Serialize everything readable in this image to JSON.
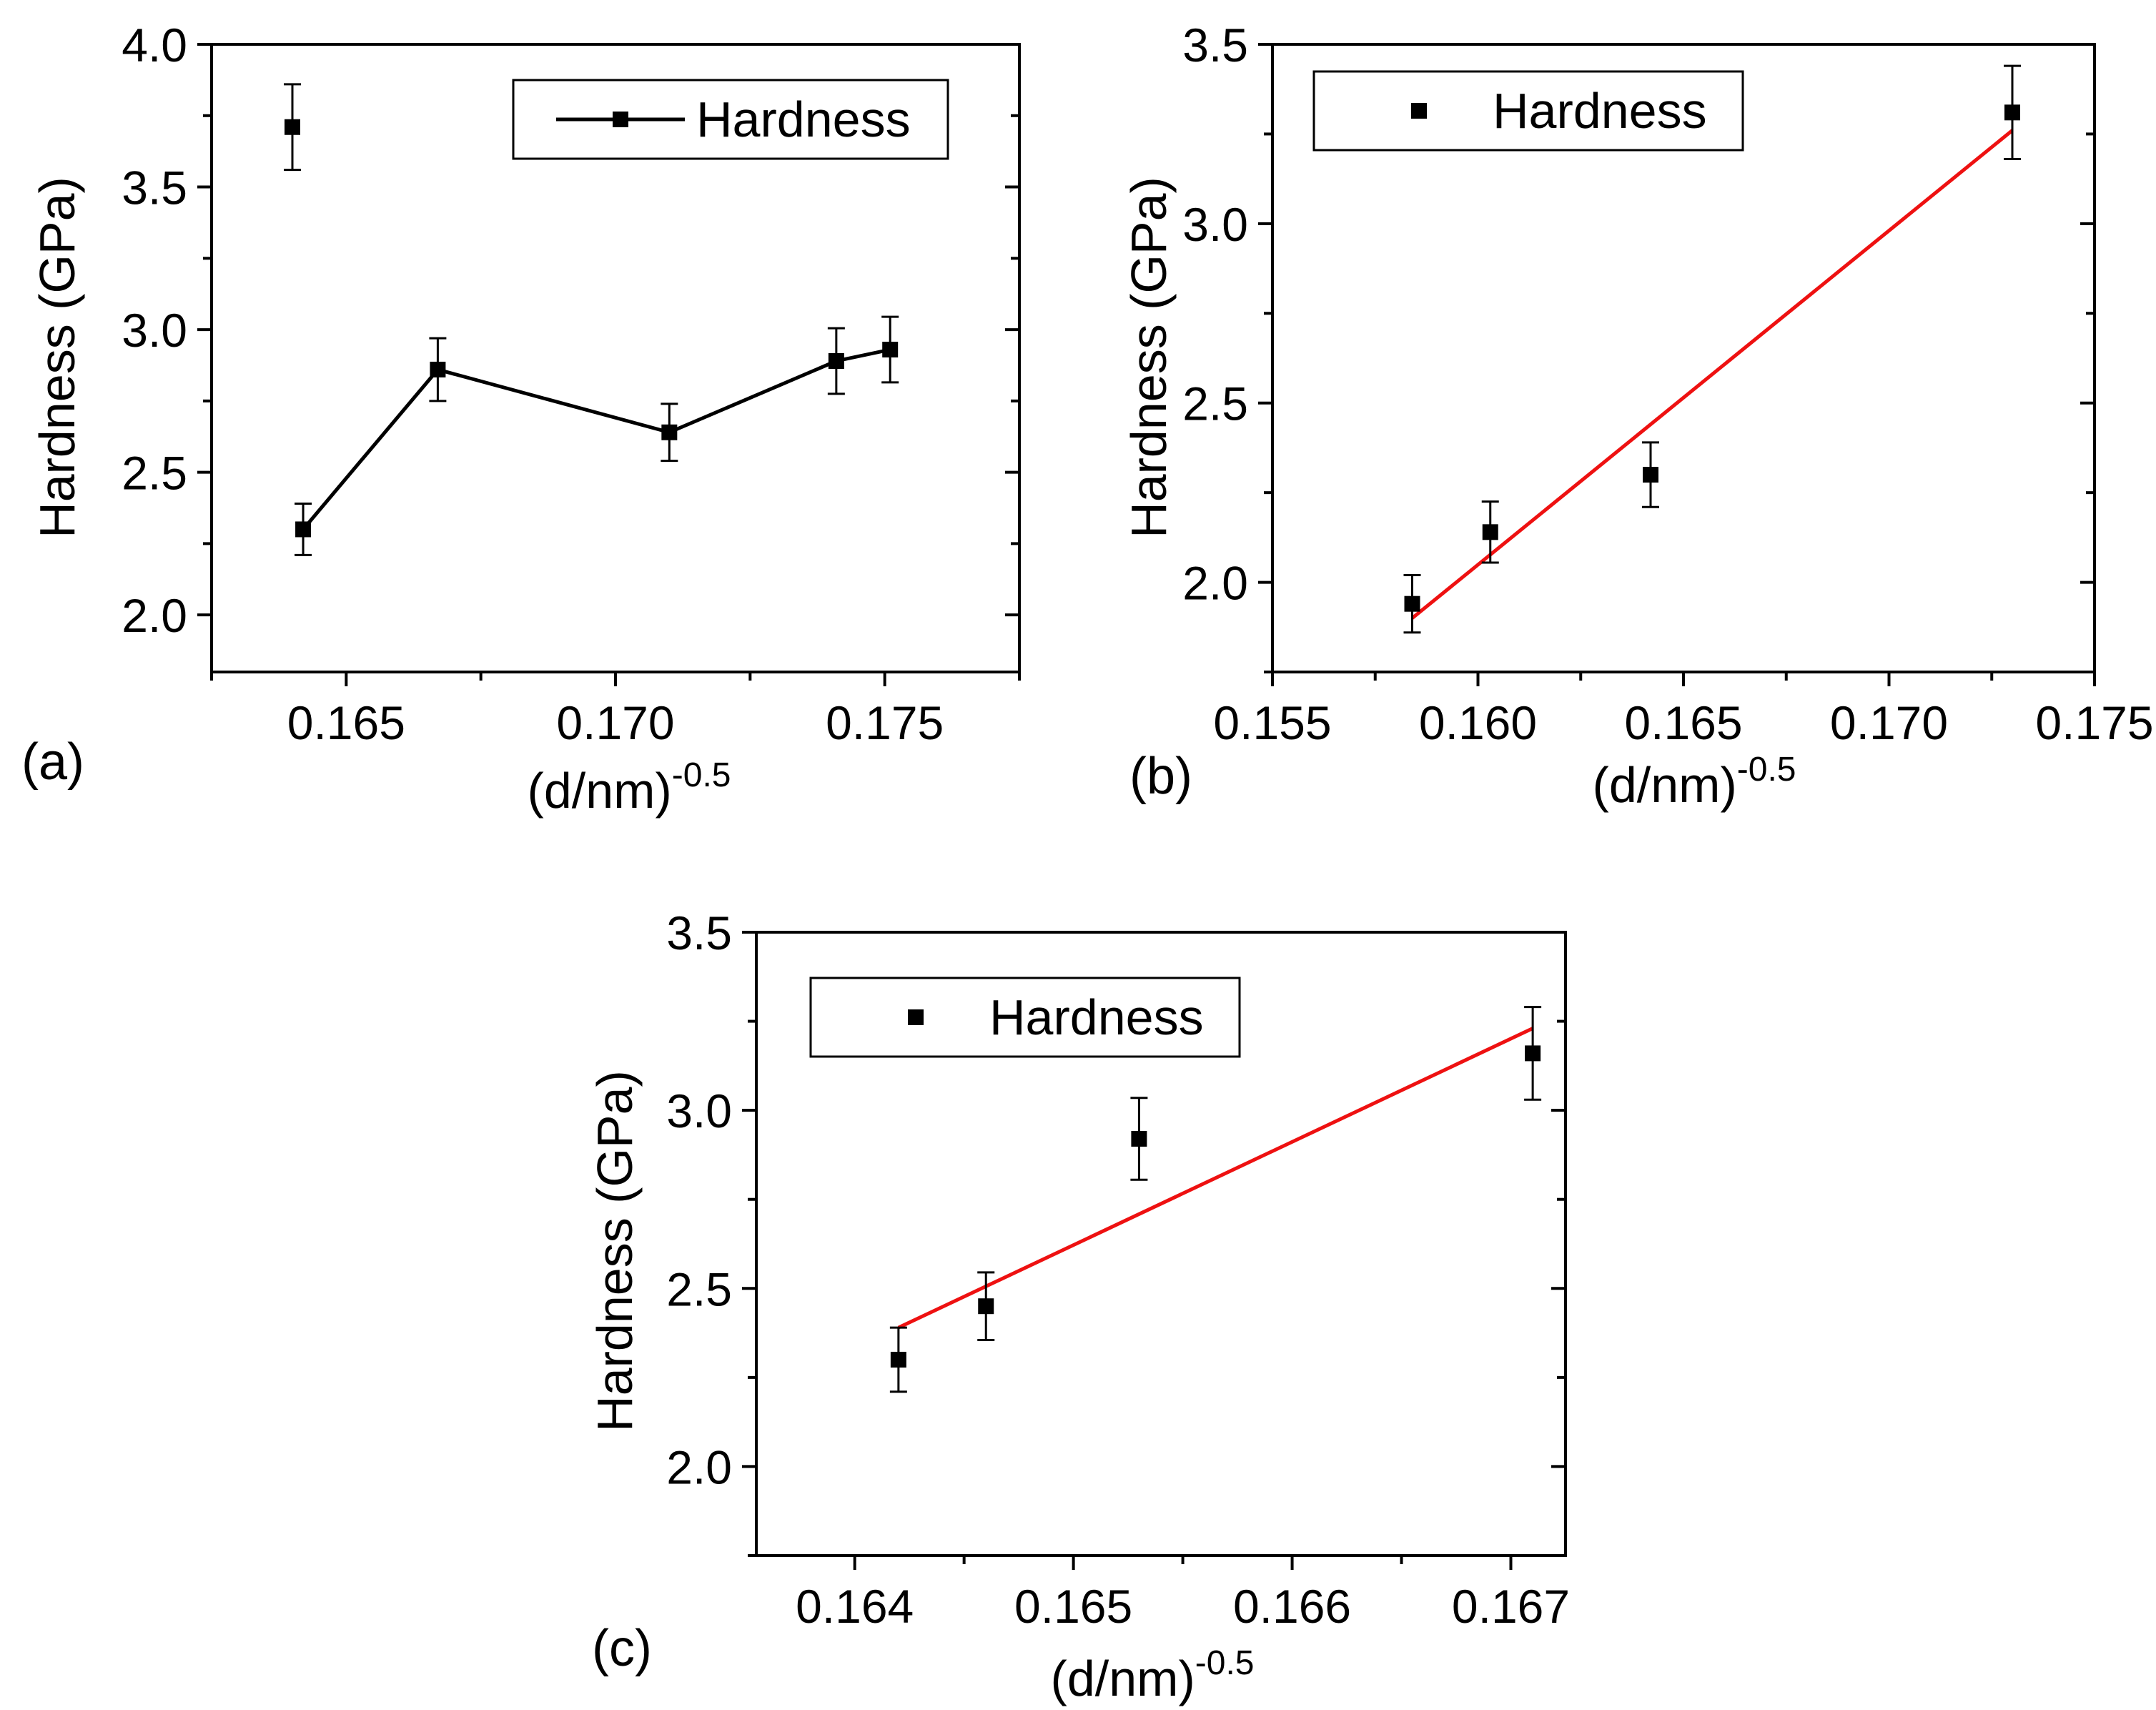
{
  "chart_data": [
    {
      "panel": "(a)",
      "type": "line",
      "xlabel": "(d/nm)",
      "xlabel_exponent": "-0.5",
      "ylabel": "Hardness (GPa)",
      "xlim": [
        0.1625,
        0.1775
      ],
      "ylim": [
        1.8,
        4.0
      ],
      "xticks": [
        0.165,
        0.17,
        0.175
      ],
      "xtick_labels": [
        "0.165",
        "0.170",
        "0.175"
      ],
      "yticks": [
        2.0,
        2.5,
        3.0,
        3.5,
        4.0
      ],
      "ytick_labels": [
        "2.0",
        "2.5",
        "3.0",
        "3.5",
        "4.0"
      ],
      "legend": {
        "label": "Hardness",
        "placement": "top-right",
        "style": "line-marker"
      },
      "points": [
        {
          "x": 0.164,
          "y": 3.71,
          "err": 0.15
        },
        {
          "x": 0.1642,
          "y": 2.3,
          "err": 0.09
        },
        {
          "x": 0.1667,
          "y": 2.86,
          "err": 0.11
        },
        {
          "x": 0.171,
          "y": 2.64,
          "err": 0.1
        },
        {
          "x": 0.1741,
          "y": 2.89,
          "err": 0.115
        },
        {
          "x": 0.1751,
          "y": 2.93,
          "err": 0.115
        }
      ],
      "line_connects": [
        1,
        2,
        3,
        4,
        5
      ],
      "fit": null
    },
    {
      "panel": "(b)",
      "type": "scatter",
      "xlabel": "(d/nm)",
      "xlabel_exponent": "-0.5",
      "ylabel": "Hardness (GPa)",
      "xlim": [
        0.155,
        0.175
      ],
      "ylim": [
        1.75,
        3.5
      ],
      "xticks": [
        0.155,
        0.16,
        0.165,
        0.17,
        0.175
      ],
      "xtick_labels": [
        "0.155",
        "0.160",
        "0.165",
        "0.170",
        "0.175"
      ],
      "yticks": [
        2.0,
        2.5,
        3.0,
        3.5
      ],
      "ytick_labels": [
        "2.0",
        "2.5",
        "3.0",
        "3.5"
      ],
      "legend": {
        "label": "Hardness",
        "placement": "top-left",
        "style": "marker"
      },
      "points": [
        {
          "x": 0.1584,
          "y": 1.94,
          "err": 0.08
        },
        {
          "x": 0.1603,
          "y": 2.14,
          "err": 0.085
        },
        {
          "x": 0.1642,
          "y": 2.3,
          "err": 0.09
        },
        {
          "x": 0.173,
          "y": 3.31,
          "err": 0.13
        }
      ],
      "fit": {
        "x1": 0.1584,
        "y1": 1.9,
        "x2": 0.173,
        "y2": 3.26,
        "color": "#ee1111"
      }
    },
    {
      "panel": "(c)",
      "type": "scatter",
      "xlabel": "(d/nm)",
      "xlabel_exponent": "-0.5",
      "ylabel": "Hardness (GPa)",
      "xlim": [
        0.16355,
        0.16725
      ],
      "ylim": [
        1.75,
        3.5
      ],
      "xticks": [
        0.164,
        0.165,
        0.166,
        0.167
      ],
      "xtick_labels": [
        "0.164",
        "0.165",
        "0.166",
        "0.167"
      ],
      "yticks": [
        2.0,
        2.5,
        3.0,
        3.5
      ],
      "ytick_labels": [
        "2.0",
        "2.5",
        "3.0",
        "3.5"
      ],
      "legend": {
        "label": "Hardness",
        "placement": "top-left",
        "style": "marker"
      },
      "points": [
        {
          "x": 0.1642,
          "y": 2.3,
          "err": 0.09
        },
        {
          "x": 0.1646,
          "y": 2.45,
          "err": 0.095
        },
        {
          "x": 0.1653,
          "y": 2.92,
          "err": 0.115
        },
        {
          "x": 0.1671,
          "y": 3.16,
          "err": 0.13
        }
      ],
      "fit": {
        "x1": 0.1642,
        "y1": 2.39,
        "x2": 0.1671,
        "y2": 3.23,
        "color": "#ee1111"
      }
    }
  ]
}
